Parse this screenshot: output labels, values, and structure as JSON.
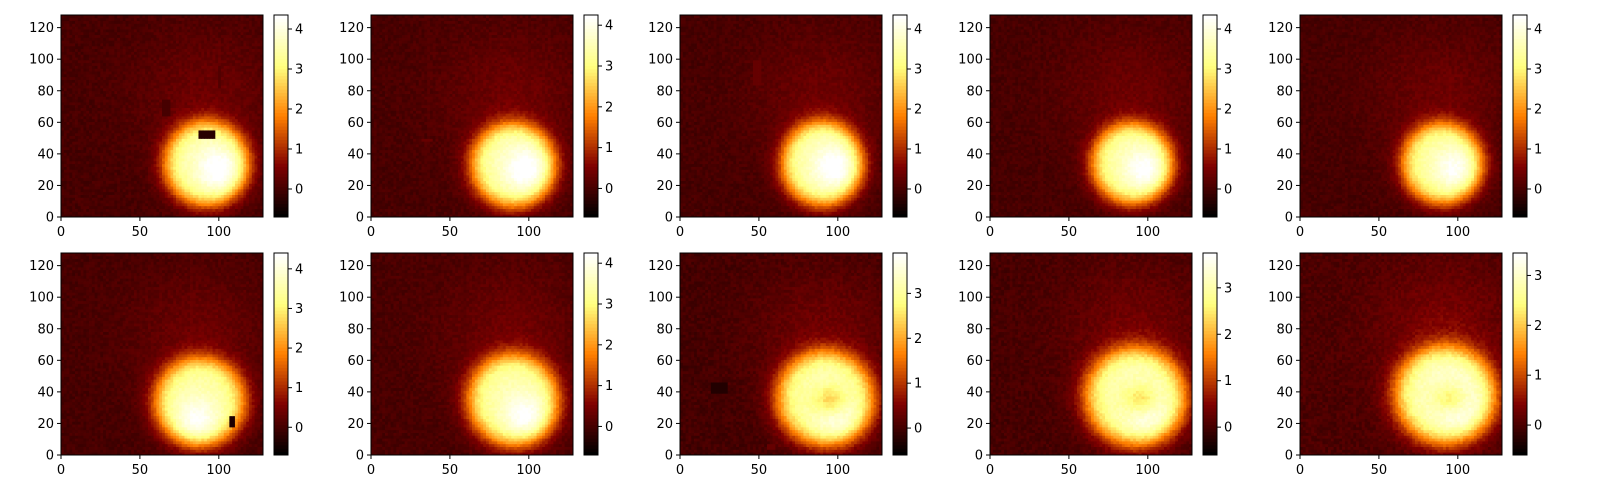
{
  "figure": {
    "colormap": "afmhot",
    "background": "#ffffff"
  },
  "chart_data": [
    {
      "type": "heatmap",
      "title": "",
      "xlabel": "",
      "ylabel": "",
      "xlim": [
        0,
        128
      ],
      "ylim": [
        0,
        128
      ],
      "xticks": [
        0,
        50,
        100
      ],
      "yticks": [
        0,
        20,
        40,
        60,
        80,
        100,
        120
      ],
      "colorbar": {
        "vmin": -0.7,
        "vmax": 4.35,
        "ticks": [
          0,
          1,
          2,
          3,
          4
        ]
      },
      "blob": {
        "cx": 92,
        "cy": 34,
        "rx": 26,
        "ry": 26,
        "peak": 4.2,
        "core_cx": 100,
        "core_cy": 30,
        "hole": false
      },
      "rects": [
        {
          "x0": 88,
          "x1": 98,
          "y0": 49,
          "y1": 56,
          "value": -0.3
        },
        {
          "x0": 100,
          "x1": 102,
          "y0": 82,
          "y1": 96,
          "value": 0.1
        },
        {
          "x0": 64,
          "x1": 70,
          "y0": 64,
          "y1": 74,
          "value": 0.0
        }
      ]
    },
    {
      "type": "heatmap",
      "title": "",
      "xlabel": "",
      "ylabel": "",
      "xlim": [
        0,
        128
      ],
      "ylim": [
        0,
        128
      ],
      "xticks": [
        0,
        50,
        100
      ],
      "yticks": [
        0,
        20,
        40,
        60,
        80,
        100,
        120
      ],
      "colorbar": {
        "vmin": -0.7,
        "vmax": 4.25,
        "ticks": [
          0,
          1,
          2,
          3,
          4
        ]
      },
      "blob": {
        "cx": 90,
        "cy": 33,
        "rx": 26,
        "ry": 26,
        "peak": 4.1,
        "core_cx": 98,
        "core_cy": 30,
        "hole": false
      },
      "rects": [
        {
          "x0": 32,
          "x1": 39,
          "y0": 48,
          "y1": 50,
          "value": 0.3
        },
        {
          "x0": 38,
          "x1": 40,
          "y0": 88,
          "y1": 92,
          "value": 0.2
        }
      ]
    },
    {
      "type": "heatmap",
      "title": "",
      "xlabel": "",
      "ylabel": "",
      "xlim": [
        0,
        128
      ],
      "ylim": [
        0,
        128
      ],
      "xticks": [
        0,
        50,
        100
      ],
      "yticks": [
        0,
        20,
        40,
        60,
        80,
        100,
        120
      ],
      "colorbar": {
        "vmin": -0.7,
        "vmax": 4.35,
        "ticks": [
          0,
          1,
          2,
          3,
          4
        ]
      },
      "blob": {
        "cx": 90,
        "cy": 34,
        "rx": 25,
        "ry": 26,
        "peak": 4.2,
        "core_cx": 98,
        "core_cy": 31,
        "hole": false
      },
      "rects": [
        {
          "x0": 47,
          "x1": 51,
          "y0": 84,
          "y1": 100,
          "value": 0.3
        }
      ]
    },
    {
      "type": "heatmap",
      "title": "",
      "xlabel": "",
      "ylabel": "",
      "xlim": [
        0,
        128
      ],
      "ylim": [
        0,
        128
      ],
      "xticks": [
        0,
        50,
        100
      ],
      "yticks": [
        0,
        20,
        40,
        60,
        80,
        100,
        120
      ],
      "colorbar": {
        "vmin": -0.7,
        "vmax": 4.35,
        "ticks": [
          0,
          1,
          2,
          3,
          4
        ]
      },
      "blob": {
        "cx": 90,
        "cy": 34,
        "rx": 25,
        "ry": 25,
        "peak": 4.1,
        "core_cx": 98,
        "core_cy": 30,
        "hole": false
      },
      "rects": []
    },
    {
      "type": "heatmap",
      "title": "",
      "xlabel": "",
      "ylabel": "",
      "xlim": [
        0,
        128
      ],
      "ylim": [
        0,
        128
      ],
      "xticks": [
        0,
        50,
        100
      ],
      "yticks": [
        0,
        20,
        40,
        60,
        80,
        100,
        120
      ],
      "colorbar": {
        "vmin": -0.7,
        "vmax": 4.35,
        "ticks": [
          0,
          1,
          2,
          3,
          4
        ]
      },
      "blob": {
        "cx": 90,
        "cy": 34,
        "rx": 25,
        "ry": 25,
        "peak": 4.0,
        "core_cx": 98,
        "core_cy": 30,
        "hole": false
      },
      "rects": []
    },
    {
      "type": "heatmap",
      "title": "",
      "xlabel": "",
      "ylabel": "",
      "xlim": [
        0,
        128
      ],
      "ylim": [
        0,
        128
      ],
      "xticks": [
        0,
        50,
        100
      ],
      "yticks": [
        0,
        20,
        40,
        60,
        80,
        100,
        120
      ],
      "colorbar": {
        "vmin": -0.7,
        "vmax": 4.4,
        "ticks": [
          0,
          1,
          2,
          3,
          4
        ]
      },
      "blob": {
        "cx": 88,
        "cy": 34,
        "rx": 28,
        "ry": 27,
        "peak": 4.1,
        "core_cx": 86,
        "core_cy": 22,
        "hole": false
      },
      "rects": [
        {
          "x0": 107,
          "x1": 111,
          "y0": 18,
          "y1": 25,
          "value": -0.4
        }
      ]
    },
    {
      "type": "heatmap",
      "title": "",
      "xlabel": "",
      "ylabel": "",
      "xlim": [
        0,
        128
      ],
      "ylim": [
        0,
        128
      ],
      "xticks": [
        0,
        50,
        100
      ],
      "yticks": [
        0,
        20,
        40,
        60,
        80,
        100,
        120
      ],
      "colorbar": {
        "vmin": -0.7,
        "vmax": 4.25,
        "ticks": [
          0,
          1,
          2,
          3,
          4
        ]
      },
      "blob": {
        "cx": 90,
        "cy": 35,
        "rx": 28,
        "ry": 28,
        "peak": 4.0,
        "core_cx": 98,
        "core_cy": 24,
        "hole": false
      },
      "rects": []
    },
    {
      "type": "heatmap",
      "title": "",
      "xlabel": "",
      "ylabel": "",
      "xlim": [
        0,
        128
      ],
      "ylim": [
        0,
        128
      ],
      "xticks": [
        0,
        50,
        100
      ],
      "yticks": [
        0,
        20,
        40,
        60,
        80,
        100,
        120
      ],
      "colorbar": {
        "vmin": -0.6,
        "vmax": 3.9,
        "ticks": [
          0,
          1,
          2,
          3
        ]
      },
      "blob": {
        "cx": 92,
        "cy": 36,
        "rx": 30,
        "ry": 29,
        "peak": 3.7,
        "core_cx": 100,
        "core_cy": 26,
        "hole": true
      },
      "rects": [
        {
          "x0": 20,
          "x1": 30,
          "y0": 40,
          "y1": 46,
          "value": -0.3
        },
        {
          "x0": 56,
          "x1": 60,
          "y0": 4,
          "y1": 8,
          "value": 0.3
        }
      ]
    },
    {
      "type": "heatmap",
      "title": "",
      "xlabel": "",
      "ylabel": "",
      "xlim": [
        0,
        128
      ],
      "ylim": [
        0,
        128
      ],
      "xticks": [
        0,
        50,
        100
      ],
      "yticks": [
        0,
        20,
        40,
        60,
        80,
        100,
        120
      ],
      "colorbar": {
        "vmin": -0.6,
        "vmax": 3.75,
        "ticks": [
          0,
          1,
          2,
          3
        ]
      },
      "blob": {
        "cx": 92,
        "cy": 37,
        "rx": 31,
        "ry": 30,
        "peak": 3.6,
        "core_cx": 100,
        "core_cy": 28,
        "hole": true
      },
      "rects": []
    },
    {
      "type": "heatmap",
      "title": "",
      "xlabel": "",
      "ylabel": "",
      "xlim": [
        0,
        128
      ],
      "ylim": [
        0,
        128
      ],
      "xticks": [
        0,
        50,
        100
      ],
      "yticks": [
        0,
        20,
        40,
        60,
        80,
        100,
        120
      ],
      "colorbar": {
        "vmin": -0.6,
        "vmax": 3.45,
        "ticks": [
          0,
          1,
          2,
          3
        ]
      },
      "blob": {
        "cx": 92,
        "cy": 38,
        "rx": 31,
        "ry": 30,
        "peak": 3.4,
        "core_cx": 100,
        "core_cy": 32,
        "hole": true
      },
      "rects": []
    }
  ]
}
